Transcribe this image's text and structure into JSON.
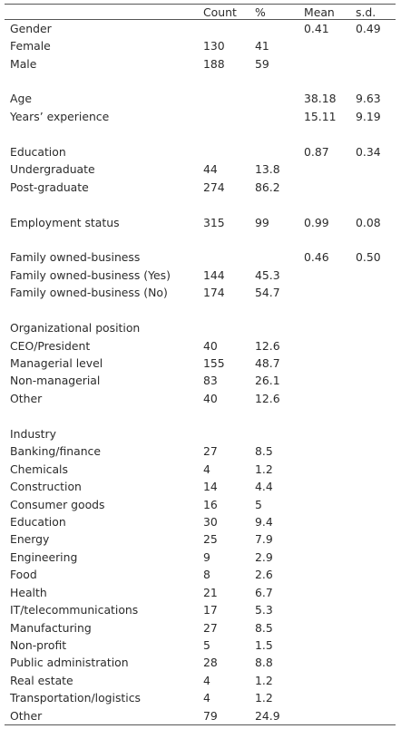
{
  "header": {
    "label": "",
    "count": "Count",
    "pct": "%",
    "mean": "Mean",
    "sd": "s.d."
  },
  "rows": [
    {
      "label": "Gender",
      "count": "",
      "pct": "",
      "mean": "0.41",
      "sd": "0.49"
    },
    {
      "label": "Female",
      "count": "130",
      "pct": "41",
      "mean": "",
      "sd": ""
    },
    {
      "label": "Male",
      "count": "188",
      "pct": "59",
      "mean": "",
      "sd": ""
    },
    {
      "label": "",
      "count": "",
      "pct": "",
      "mean": "",
      "sd": ""
    },
    {
      "label": "Age",
      "count": "",
      "pct": "",
      "mean": "38.18",
      "sd": "9.63"
    },
    {
      "label": "Years’ experience",
      "count": "",
      "pct": "",
      "mean": "15.11",
      "sd": "9.19"
    },
    {
      "label": "",
      "count": "",
      "pct": "",
      "mean": "",
      "sd": ""
    },
    {
      "label": "Education",
      "count": "",
      "pct": "",
      "mean": " 0.87",
      "sd": "0.34"
    },
    {
      "label": "Undergraduate",
      "count": "44",
      "pct": "13.8",
      "mean": "",
      "sd": ""
    },
    {
      "label": "Post-graduate",
      "count": "274",
      "pct": "86.2",
      "mean": "",
      "sd": ""
    },
    {
      "label": "",
      "count": "",
      "pct": "",
      "mean": "",
      "sd": ""
    },
    {
      "label": "Employment status",
      "count": "315",
      "pct": "99",
      "mean": "0.99",
      "sd": "0.08"
    },
    {
      "label": "",
      "count": "",
      "pct": "",
      "mean": "",
      "sd": ""
    },
    {
      "label": "Family owned-business",
      "count": "",
      "pct": "",
      "mean": "0.46",
      "sd": "0.50"
    },
    {
      "label": "Family owned-business (Yes)",
      "count": "144",
      "pct": "45.3",
      "mean": "",
      "sd": ""
    },
    {
      "label": "Family owned-business (No)",
      "count": "174",
      "pct": "54.7",
      "mean": "",
      "sd": ""
    },
    {
      "label": "",
      "count": "",
      "pct": "",
      "mean": "",
      "sd": ""
    },
    {
      "label": "Organizational position",
      "count": "",
      "pct": "",
      "mean": "",
      "sd": ""
    },
    {
      "label": "CEO/President",
      "count": "40",
      "pct": "12.6",
      "mean": "",
      "sd": ""
    },
    {
      "label": "Managerial level",
      "count": "155",
      "pct": "48.7",
      "mean": "",
      "sd": ""
    },
    {
      "label": "Non-managerial",
      "count": "83",
      "pct": "26.1",
      "mean": "",
      "sd": ""
    },
    {
      "label": "Other",
      "count": "40",
      "pct": "12.6",
      "mean": "",
      "sd": ""
    },
    {
      "label": "",
      "count": "",
      "pct": "",
      "mean": "",
      "sd": ""
    },
    {
      "label": "Industry",
      "count": "",
      "pct": "",
      "mean": "",
      "sd": ""
    },
    {
      "label": "Banking/finance",
      "count": "27",
      "pct": "8.5",
      "mean": "",
      "sd": ""
    },
    {
      "label": "Chemicals",
      "count": "4",
      "pct": "1.2",
      "mean": "",
      "sd": ""
    },
    {
      "label": "Construction",
      "count": "14",
      "pct": "4.4",
      "mean": "",
      "sd": ""
    },
    {
      "label": "Consumer goods",
      "count": "16",
      "pct": "5",
      "mean": "",
      "sd": ""
    },
    {
      "label": "Education",
      "count": "30",
      "pct": "9.4",
      "mean": "",
      "sd": ""
    },
    {
      "label": "Energy",
      "count": "25",
      "pct": "7.9",
      "mean": "",
      "sd": ""
    },
    {
      "label": "Engineering",
      "count": "9",
      "pct": "2.9",
      "mean": "",
      "sd": ""
    },
    {
      "label": "Food",
      "count": "8",
      "pct": "2.6",
      "mean": "",
      "sd": ""
    },
    {
      "label": "Health",
      "count": "21",
      "pct": "6.7",
      "mean": "",
      "sd": ""
    },
    {
      "label": "IT/telecommunications",
      "count": "17",
      "pct": "5.3",
      "mean": "",
      "sd": ""
    },
    {
      "label": "Manufacturing",
      "count": "27",
      "pct": "8.5",
      "mean": "",
      "sd": ""
    },
    {
      "label": "Non-profit",
      "count": "5",
      "pct": "1.5",
      "mean": "",
      "sd": ""
    },
    {
      "label": "Public administration",
      "count": "28",
      "pct": "8.8",
      "mean": "",
      "sd": ""
    },
    {
      "label": "Real estate",
      "count": "4",
      "pct": "1.2",
      "mean": "",
      "sd": ""
    },
    {
      "label": "Transportation/logistics",
      "count": "4",
      "pct": "1.2",
      "mean": "",
      "sd": ""
    },
    {
      "label": "Other",
      "count": "79",
      "pct": "24.9",
      "mean": "",
      "sd": ""
    }
  ]
}
